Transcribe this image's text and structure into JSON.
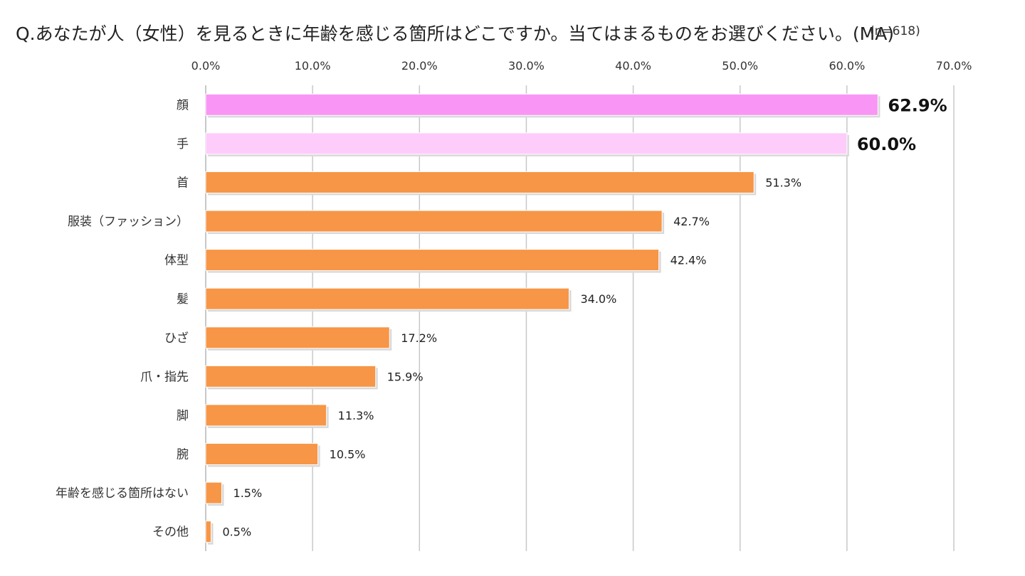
{
  "chart_data": {
    "type": "bar",
    "orientation": "horizontal",
    "title": "Q.あなたが人（女性）を見るときに年齢を感じる箇所はどこですか。当てはまるものをお選びください。(MA)",
    "note": "(n=618)",
    "xlim": [
      0,
      70
    ],
    "xticks": [
      "0.0%",
      "10.0%",
      "20.0%",
      "30.0%",
      "40.0%",
      "50.0%",
      "60.0%",
      "70.0%"
    ],
    "grid": true,
    "categories": [
      "顔",
      "手",
      "首",
      "服装（ファッション）",
      "体型",
      "髪",
      "ひざ",
      "爪・指先",
      "脚",
      "腕",
      "年齢を感じる箇所はない",
      "その他"
    ],
    "values": [
      62.9,
      60.0,
      51.3,
      42.7,
      42.4,
      34.0,
      17.2,
      15.9,
      11.3,
      10.5,
      1.5,
      0.5
    ],
    "value_labels": [
      "62.9%",
      "60.0%",
      "51.3%",
      "42.7%",
      "42.4%",
      "34.0%",
      "17.2%",
      "15.9%",
      "11.3%",
      "10.5%",
      "1.5%",
      "0.5%"
    ],
    "highlight": [
      true,
      true,
      false,
      false,
      false,
      false,
      false,
      false,
      false,
      false,
      false,
      false
    ],
    "bar_colors": [
      "#f996f5",
      "#fdccfb",
      "#f79646",
      "#f79646",
      "#f79646",
      "#f79646",
      "#f79646",
      "#f79646",
      "#f79646",
      "#f79646",
      "#f79646",
      "#f79646"
    ],
    "gridline_color": "#c8c8c8"
  }
}
